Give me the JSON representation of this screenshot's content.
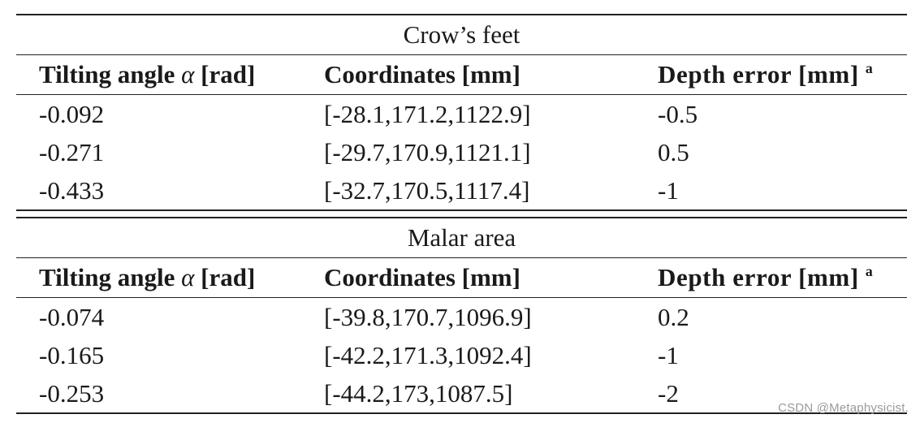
{
  "sections": [
    {
      "title": "Crow’s feet",
      "headers": {
        "col1_text": "Tilting angle ",
        "col1_symbol": "α",
        "col1_unit": " [rad]",
        "col2": "Coordinates [mm]",
        "col3": "Depth error [mm]",
        "col3_footnote": "a"
      },
      "rows": [
        [
          "-0.092",
          "[-28.1,171.2,1122.9]",
          "-0.5"
        ],
        [
          "-0.271",
          "[-29.7,170.9,1121.1]",
          "0.5"
        ],
        [
          "-0.433",
          "[-32.7,170.5,1117.4]",
          "-1"
        ]
      ]
    },
    {
      "title": "Malar area",
      "headers": {
        "col1_text": "Tilting angle ",
        "col1_symbol": "α",
        "col1_unit": " [rad]",
        "col2": "Coordinates [mm]",
        "col3": "Depth error [mm]",
        "col3_footnote": "a"
      },
      "rows": [
        [
          "-0.074",
          "[-39.8,170.7,1096.9]",
          "0.2"
        ],
        [
          "-0.165",
          "[-42.2,171.3,1092.4]",
          "-1"
        ],
        [
          "-0.253",
          "[-44.2,173,1087.5]",
          "-2"
        ]
      ]
    }
  ],
  "watermark": "CSDN @Metaphysicist."
}
